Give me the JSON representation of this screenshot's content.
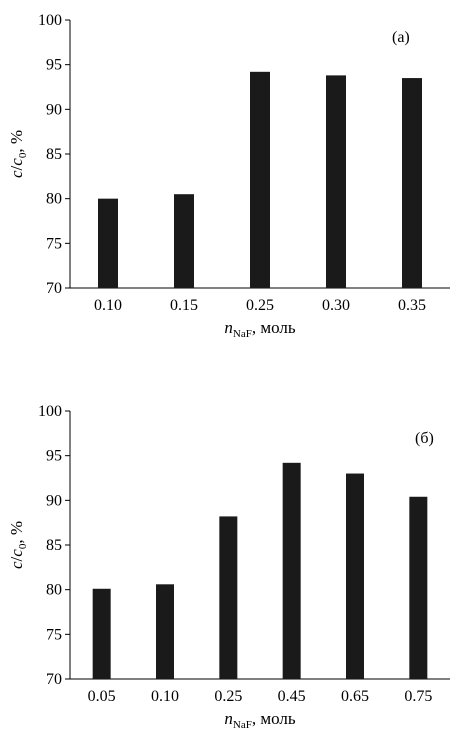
{
  "chart_data": [
    {
      "type": "bar",
      "panel_label": "(а)",
      "categories": [
        "0.10",
        "0.15",
        "0.25",
        "0.30",
        "0.35"
      ],
      "values": [
        80.0,
        80.5,
        94.2,
        93.8,
        93.5
      ],
      "ylim": [
        70,
        100
      ],
      "yticks": [
        "70",
        "75",
        "80",
        "85",
        "90",
        "95",
        "100"
      ],
      "ylabel": {
        "var": "c",
        "sep": "/",
        "var2": "c",
        "sub2": "0",
        "rest": ", %"
      },
      "xlabel": {
        "var": "n",
        "sub": "NaF",
        "rest": ", моль"
      },
      "bar_color": "#1a1a1a",
      "grid": false
    },
    {
      "type": "bar",
      "panel_label": "(б)",
      "categories": [
        "0.05",
        "0.10",
        "0.25",
        "0.45",
        "0.65",
        "0.75"
      ],
      "values": [
        80.1,
        80.6,
        88.2,
        94.2,
        93.0,
        90.4
      ],
      "ylim": [
        70,
        100
      ],
      "yticks": [
        "70",
        "75",
        "80",
        "85",
        "90",
        "95",
        "100"
      ],
      "ylabel": {
        "var": "c",
        "sep": "/",
        "var2": "c",
        "sub2": "0",
        "rest": ", %"
      },
      "xlabel": {
        "var": "n",
        "sub": "NaF",
        "rest": ", моль"
      },
      "bar_color": "#1a1a1a",
      "grid": false
    }
  ]
}
